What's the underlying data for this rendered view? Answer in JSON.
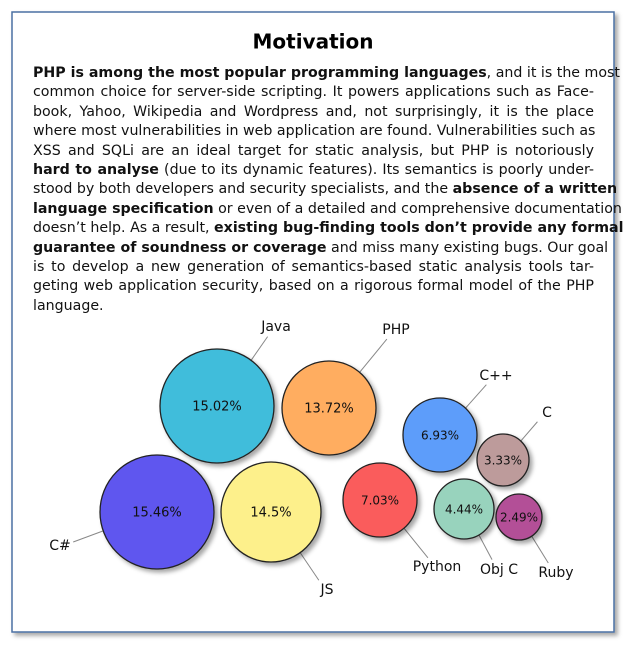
{
  "title": "Motivation",
  "body": {
    "lines": [
      [
        {
          "text": "PHP is among the most popular programming languages",
          "bold": true
        },
        {
          "text": ", and it is the most"
        }
      ],
      [
        {
          "text": "common choice for server-side scripting. It powers applications such as Face-"
        }
      ],
      [
        {
          "text": "book, Yahoo, Wikipedia and Wordpress and, not surprisingly, it is the place"
        }
      ],
      [
        {
          "text": "where most vulnerabilities in web application are found. Vulnerabilities such as"
        }
      ],
      [
        {
          "text": "XSS and SQLi are an ideal target for static analysis, but PHP is notoriously"
        }
      ],
      [
        {
          "text": "hard to analyse",
          "bold": true
        },
        {
          "text": " (due to its dynamic features). Its semantics is poorly under-"
        }
      ],
      [
        {
          "text": "stood by both developers and security specialists, and the "
        },
        {
          "text": "absence of a written",
          "bold": true
        }
      ],
      [
        {
          "text": "language specification",
          "bold": true
        },
        {
          "text": " or even of a detailed and comprehensive documentation"
        }
      ],
      [
        {
          "text": "doesn’t help. As a result, "
        },
        {
          "text": "existing bug-finding tools don’t provide any formal",
          "bold": true
        }
      ],
      [
        {
          "text": "guarantee of soundness or coverage",
          "bold": true
        },
        {
          "text": " and miss many existing bugs. Our goal"
        }
      ],
      [
        {
          "text": "is to develop a new generation of semantics-based static analysis tools tar-"
        }
      ],
      [
        {
          "text": "geting web application security, based on a rigorous formal model of the PHP"
        }
      ],
      [
        {
          "text": "language."
        }
      ]
    ]
  },
  "chart_data": {
    "type": "bubble",
    "categories": [
      "Java",
      "PHP",
      "C++",
      "C",
      "C#",
      "JS",
      "Python",
      "Obj C",
      "Ruby"
    ],
    "values": [
      15.02,
      13.72,
      6.93,
      3.33,
      15.46,
      14.5,
      7.03,
      4.44,
      2.49
    ],
    "value_labels": [
      "15.02%",
      "13.72%",
      "6.93%",
      "3.33%",
      "15.46%",
      "14.5%",
      "7.03%",
      "4.44%",
      "2.49%"
    ],
    "colors": [
      "#41bddb",
      "#ffad60",
      "#5d9dfa",
      "#bd9b9b",
      "#5f56ef",
      "#fdf08b",
      "#fa5b5b",
      "#98d3bd",
      "#b35097"
    ]
  }
}
